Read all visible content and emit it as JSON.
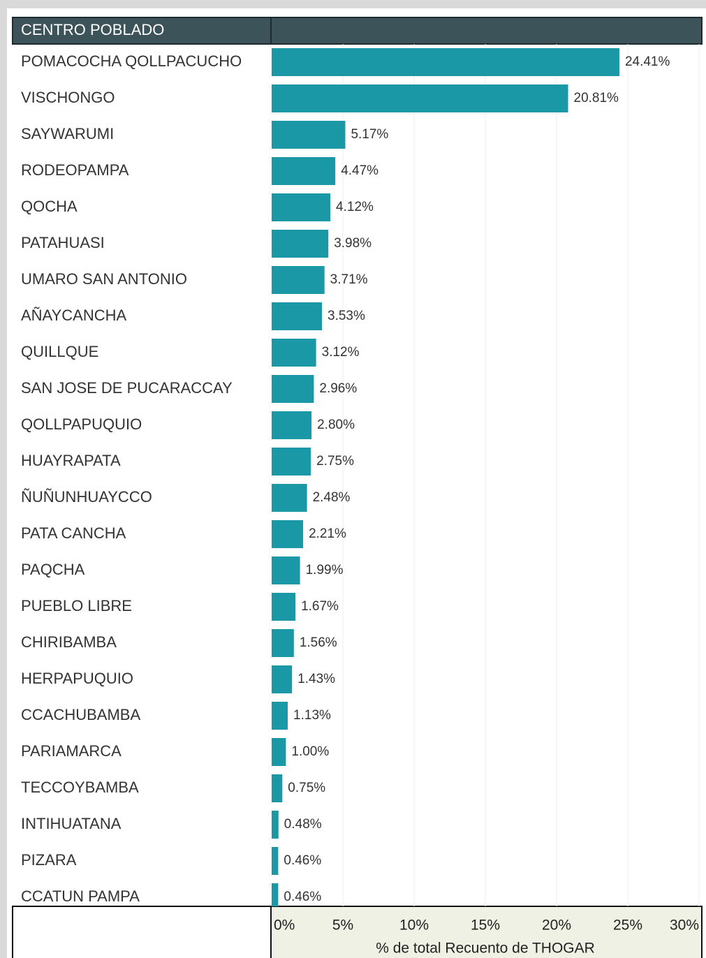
{
  "chart_data": {
    "type": "bar",
    "orientation": "horizontal",
    "header": "CENTRO POBLADO",
    "x_label": "% de total Recuento de THOGAR",
    "categories": [
      "POMACOCHA QOLLPACUCHO",
      "VISCHONGO",
      "SAYWARUMI",
      "RODEOPAMPA",
      "QOCHA",
      "PATAHUASI",
      "UMARO SAN ANTONIO",
      "AÑAYCANCHA",
      "QUILLQUE",
      "SAN JOSE DE PUCARACCAY",
      "QOLLPAPUQUIO",
      "HUAYRAPATA",
      "ÑUÑUNHUAYCCO",
      "PATA CANCHA",
      "PAQCHA",
      "PUEBLO LIBRE",
      "CHIRIBAMBA",
      "HERPAPUQUIO",
      "CCACHUBAMBA",
      "PARIAMARCA",
      "TECCOYBAMBA",
      "INTIHUATANA",
      "PIZARA",
      "CCATUN PAMPA"
    ],
    "values": [
      24.41,
      20.81,
      5.17,
      4.47,
      4.12,
      3.98,
      3.71,
      3.53,
      3.12,
      2.96,
      2.8,
      2.75,
      2.48,
      2.21,
      1.99,
      1.67,
      1.56,
      1.43,
      1.13,
      1.0,
      0.75,
      0.48,
      0.46,
      0.46
    ],
    "value_labels": [
      "24.41%",
      "20.81%",
      "5.17%",
      "4.47%",
      "4.12%",
      "3.98%",
      "3.71%",
      "3.53%",
      "3.12%",
      "2.96%",
      "2.80%",
      "2.75%",
      "2.48%",
      "2.21%",
      "1.99%",
      "1.67%",
      "1.56%",
      "1.43%",
      "1.13%",
      "1.00%",
      "0.75%",
      "0.48%",
      "0.46%",
      "0.46%"
    ],
    "color": "#1b98a6",
    "xlim": [
      0,
      30
    ],
    "xticks": [
      {
        "value": 0,
        "label": "0%"
      },
      {
        "value": 5,
        "label": "5%"
      },
      {
        "value": 10,
        "label": "10%"
      },
      {
        "value": 15,
        "label": "15%"
      },
      {
        "value": 20,
        "label": "20%"
      },
      {
        "value": 25,
        "label": "25%"
      },
      {
        "value": 30,
        "label": "30%"
      }
    ],
    "grid": true
  }
}
